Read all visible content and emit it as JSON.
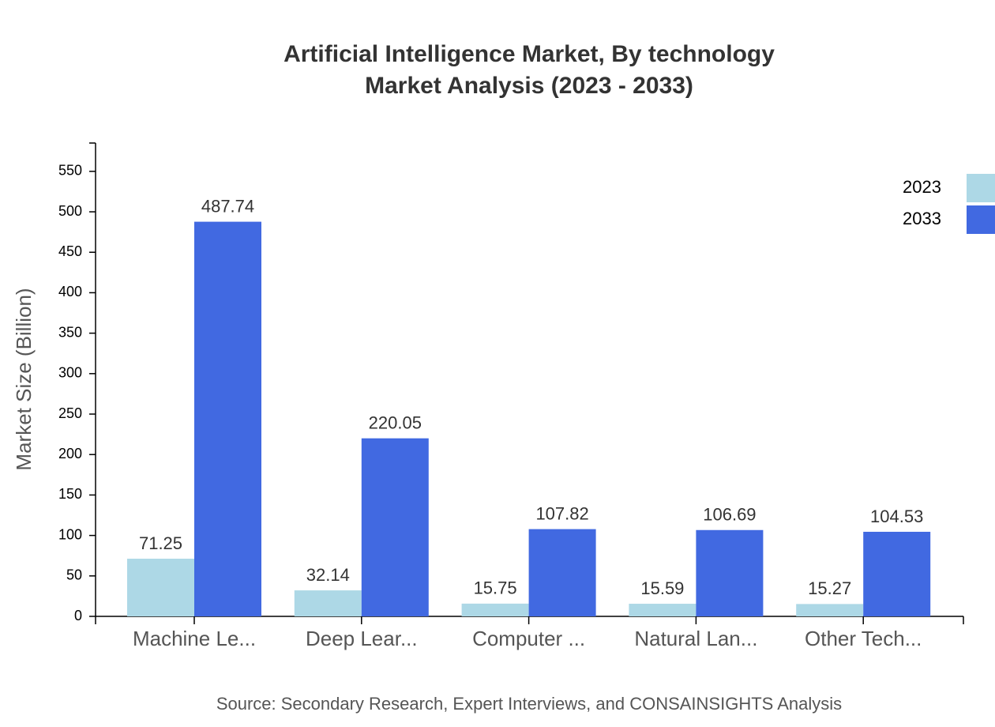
{
  "chart_data": {
    "type": "bar",
    "title": "Artificial Intelligence Market, By technology",
    "subtitle": "Market Analysis (2023 - 2033)",
    "y_label": "Market Size (Billion)",
    "source": "Source: Secondary Research, Expert Interviews, and CONSAINSIGHTS Analysis",
    "categories": [
      "Machine Le...",
      "Deep Lear...",
      "Computer ...",
      "Natural Lan...",
      "Other Tech..."
    ],
    "series": [
      {
        "name": "2023",
        "color": "#add8e6",
        "values": [
          71.25,
          32.14,
          15.75,
          15.59,
          15.27
        ]
      },
      {
        "name": "2033",
        "color": "#4169e1",
        "values": [
          487.74,
          220.05,
          107.82,
          106.69,
          104.53
        ]
      }
    ],
    "ylim": [
      0,
      585
    ],
    "yticks": [
      0,
      50,
      100,
      150,
      200,
      250,
      300,
      350,
      400,
      450,
      500,
      550
    ],
    "legend": "top-right"
  }
}
